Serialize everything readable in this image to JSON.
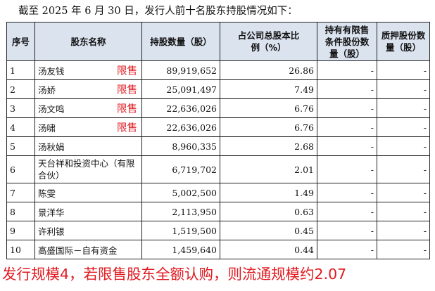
{
  "intro": "截至 2025 年 6 月 30 日，发行人前十名股东持股情况如下：",
  "table": {
    "headers": [
      "序号",
      "股东名称",
      "持股数量（股）",
      "占公司总股本比例（%）",
      "持有有限售条件股份数量（股）",
      "质押股份数量（股）"
    ],
    "rows": [
      {
        "no": "1",
        "name": "汤友钱",
        "tag": "限售",
        "shares": "89,919,652",
        "pct": "26.86",
        "restricted": "-",
        "pledged": "-"
      },
      {
        "no": "2",
        "name": "汤娇",
        "tag": "限售",
        "shares": "25,091,497",
        "pct": "7.49",
        "restricted": "-",
        "pledged": "-"
      },
      {
        "no": "3",
        "name": "汤文鸣",
        "tag": "限售",
        "shares": "22,636,026",
        "pct": "6.76",
        "restricted": "-",
        "pledged": "-"
      },
      {
        "no": "4",
        "name": "汤啸",
        "tag": "限售",
        "shares": "22,636,026",
        "pct": "6.76",
        "restricted": "-",
        "pledged": "-"
      },
      {
        "no": "5",
        "name": "汤秋娟",
        "tag": "",
        "shares": "8,960,335",
        "pct": "2.68",
        "restricted": "-",
        "pledged": "-"
      },
      {
        "no": "6",
        "name": "天台祥和投资中心（有限合伙）",
        "tag": "",
        "shares": "6,719,702",
        "pct": "2.01",
        "restricted": "-",
        "pledged": "-"
      },
      {
        "no": "7",
        "name": "陈雯",
        "tag": "",
        "shares": "5,002,500",
        "pct": "1.49",
        "restricted": "-",
        "pledged": "-"
      },
      {
        "no": "8",
        "name": "景洋华",
        "tag": "",
        "shares": "2,113,950",
        "pct": "0.63",
        "restricted": "-",
        "pledged": "-"
      },
      {
        "no": "9",
        "name": "许利银",
        "tag": "",
        "shares": "1,519,500",
        "pct": "0.45",
        "restricted": "-",
        "pledged": "-"
      },
      {
        "no": "10",
        "name": "高盛国际－自有资金",
        "tag": "",
        "shares": "1,459,640",
        "pct": "0.44",
        "restricted": "-",
        "pledged": "-"
      }
    ]
  },
  "note": "发行规模4，若限售股东全额认购，则流通规模约2.07",
  "colors": {
    "header_bg": "#dbe3ef",
    "annotation_red": "#e0191f",
    "border": "#222222"
  }
}
